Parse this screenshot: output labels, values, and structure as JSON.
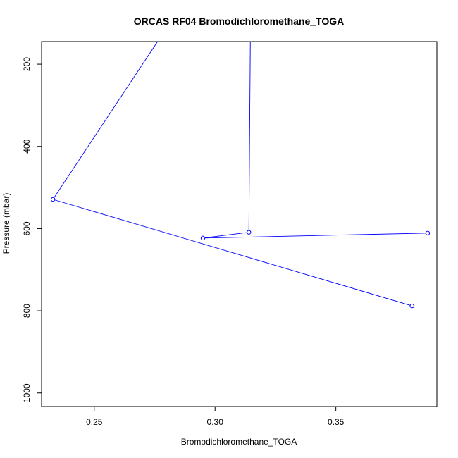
{
  "chart_data": {
    "type": "line",
    "title": "ORCAS RF04 Bromodichloromethane_TOGA",
    "xlabel": "Bromodichloromethane_TOGA",
    "ylabel": "Pressure (mbar)",
    "xlim": [
      0.2282,
      0.3918
    ],
    "ylim": [
      1033,
      145
    ],
    "y_inverted": true,
    "grid": false,
    "colors": {
      "series": "#0000ff",
      "axes": "#000000",
      "background": "#ffffff"
    },
    "x_ticks": [
      {
        "value": 0.25,
        "label": "0.25"
      },
      {
        "value": 0.3,
        "label": "0.30"
      },
      {
        "value": 0.35,
        "label": "0.35"
      }
    ],
    "y_ticks": [
      {
        "value": 200,
        "label": "200"
      },
      {
        "value": 400,
        "label": "400"
      },
      {
        "value": 600,
        "label": "600"
      },
      {
        "value": 800,
        "label": "800"
      },
      {
        "value": 1000,
        "label": "1000"
      }
    ],
    "series": [
      {
        "marker": "open-circle",
        "points": [
          {
            "x": 0.3815,
            "y": 788
          },
          {
            "x": 0.2329,
            "y": 529
          },
          {
            "x": 0.2762,
            "y": 145
          },
          {
            "x": 0.3146,
            "y": 145
          },
          {
            "x": 0.314,
            "y": 609
          },
          {
            "x": 0.295,
            "y": 623
          },
          {
            "x": 0.388,
            "y": 611
          }
        ],
        "marker_indices": [
          0,
          1,
          4,
          5,
          6
        ]
      }
    ]
  }
}
